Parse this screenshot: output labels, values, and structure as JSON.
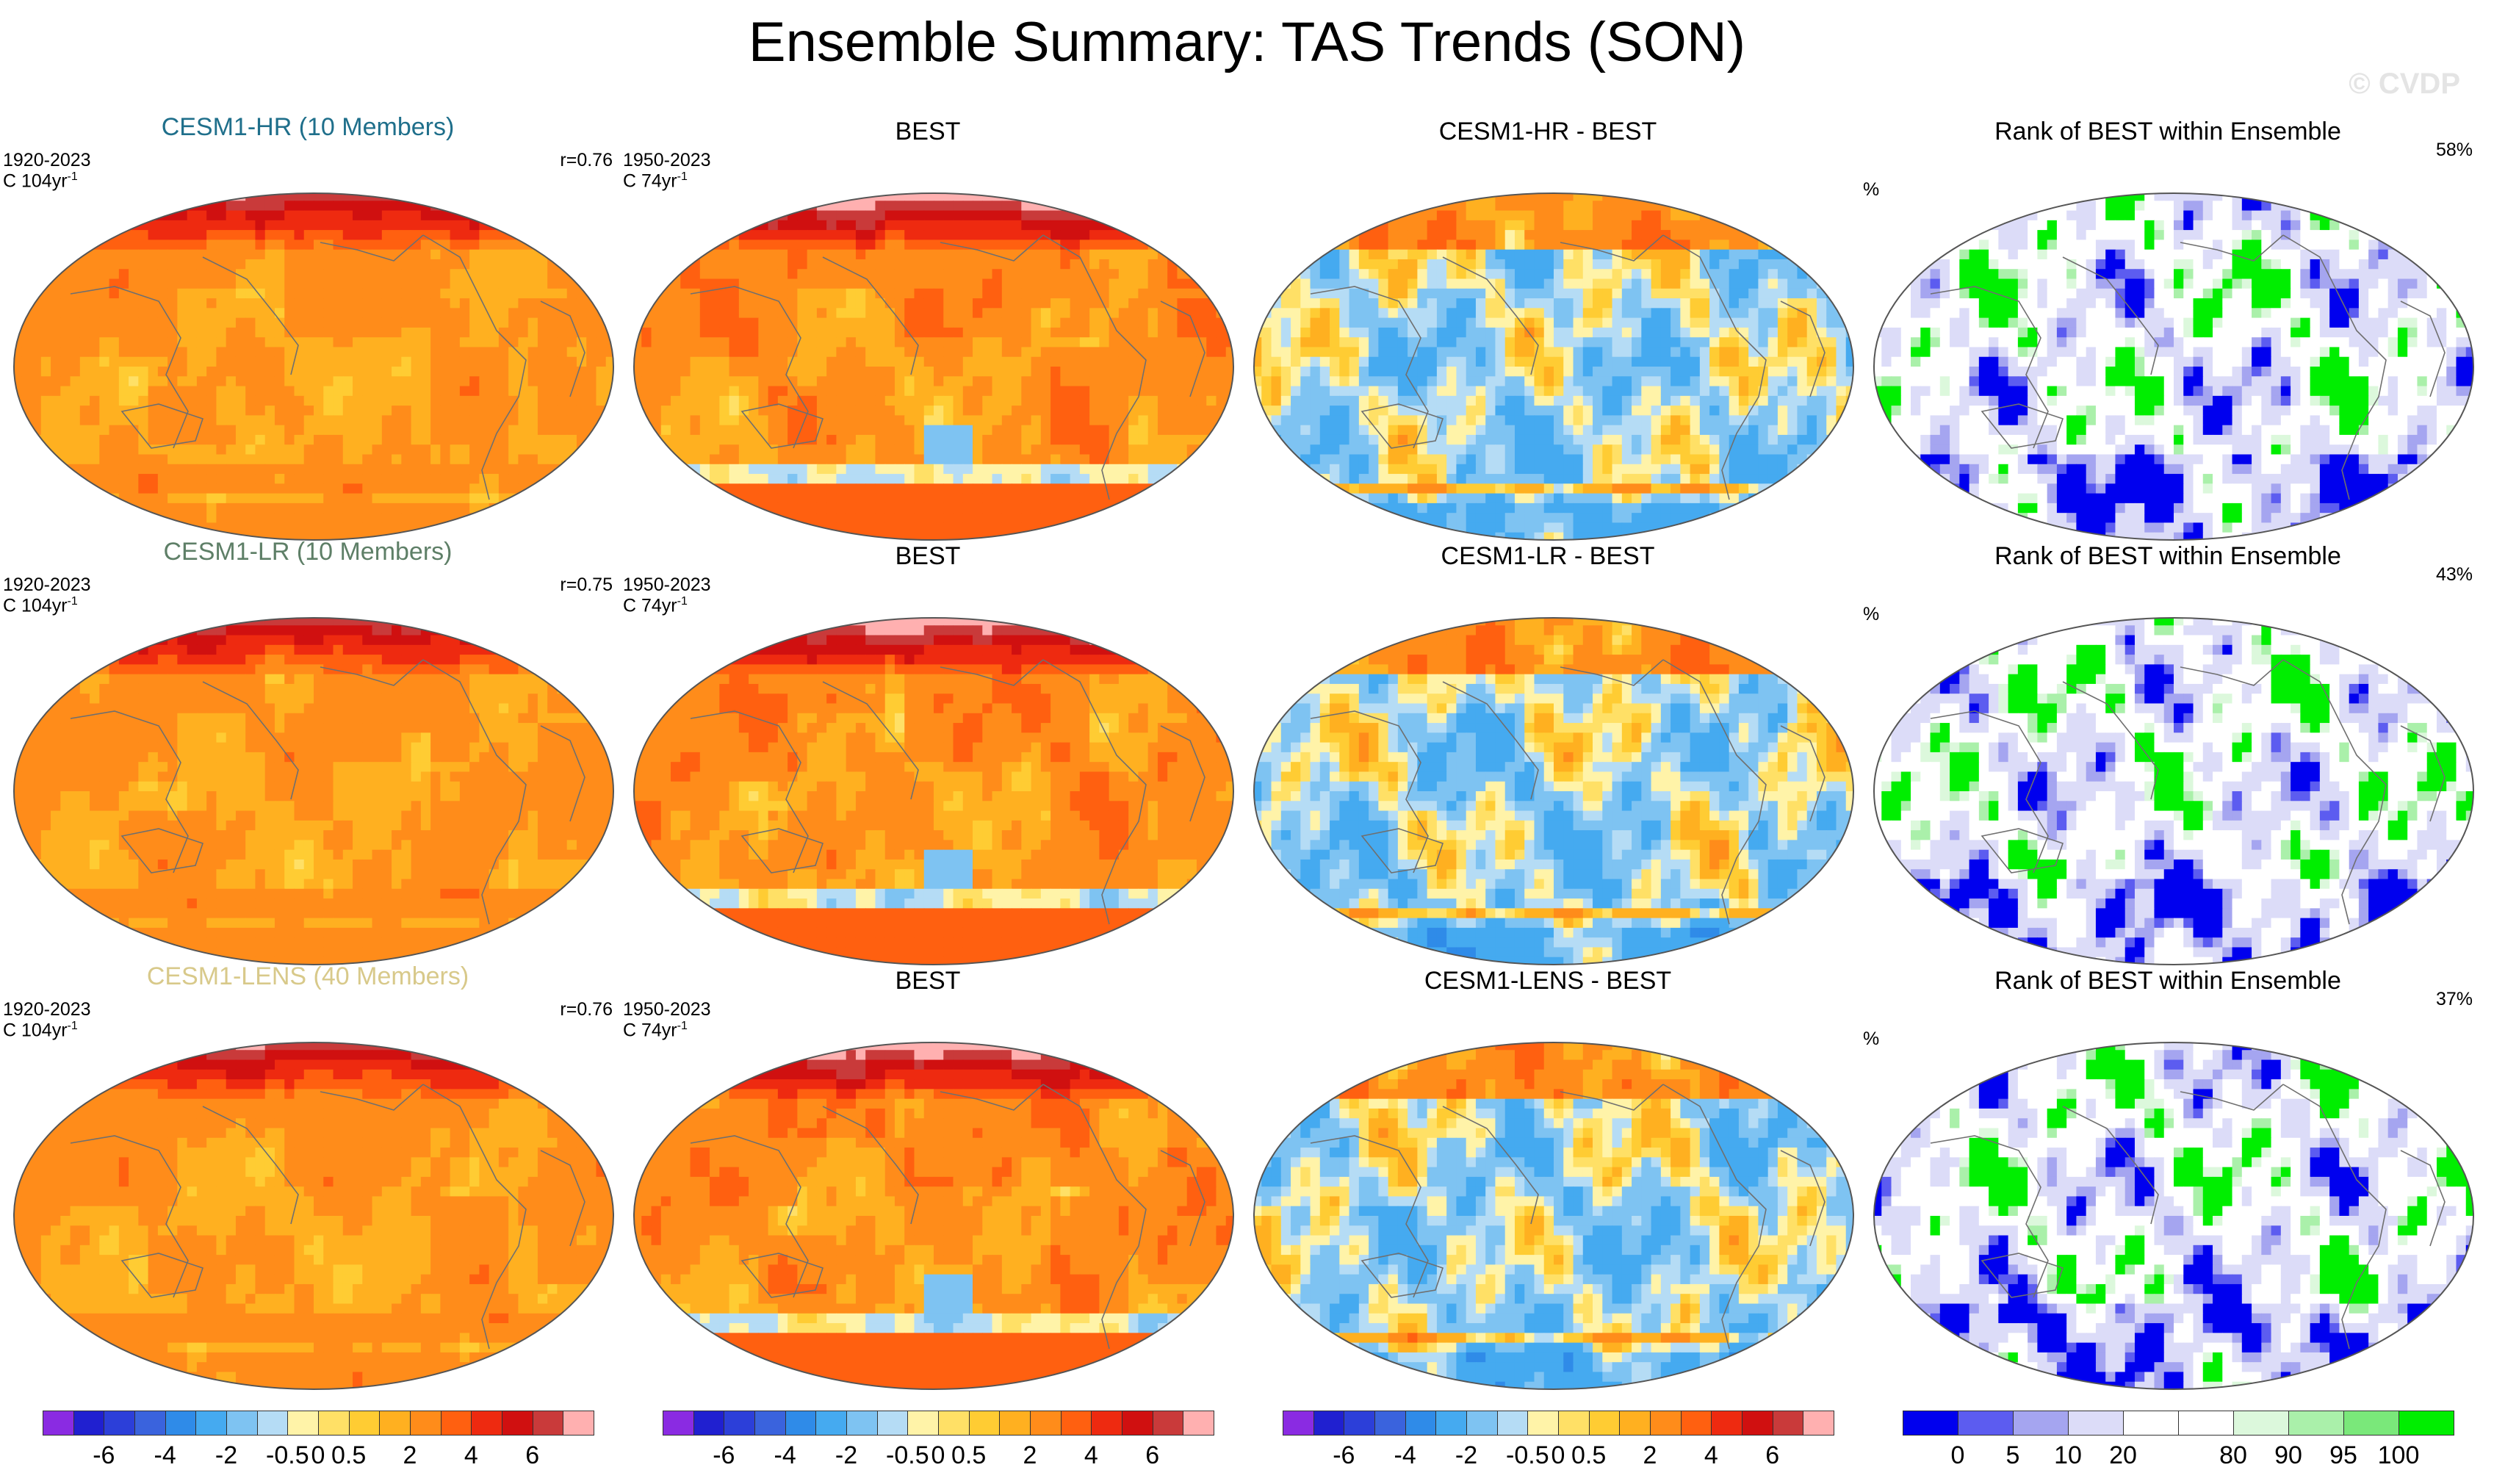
{
  "title": "Ensemble Summary: TAS Trends (SON)",
  "watermark": "© CVDP",
  "chart_data": {
    "type": "heatmap",
    "rows": [
      {
        "panels": [
          {
            "kind": "model",
            "title": "CESM1-HR (10 Members)",
            "title_color": "#1f6f8b",
            "tl1": "1920-2023",
            "tl2": "C 104yr",
            "tr": "r=0.76",
            "field": "model_warm"
          },
          {
            "kind": "obs",
            "title": "BEST",
            "tl1": "1950-2023",
            "tl2": "C 74yr",
            "tr": "",
            "field": "obs_warm"
          },
          {
            "kind": "diff",
            "title": "CESM1-HR - BEST",
            "tl1": "",
            "tl2": "",
            "tr": "",
            "field": "diff"
          },
          {
            "kind": "rank",
            "title": "Rank of BEST within Ensemble",
            "tl1": "%",
            "tl2": "",
            "tr": "58%",
            "field": "rank"
          }
        ]
      },
      {
        "panels": [
          {
            "kind": "model",
            "title": "CESM1-LR (10 Members)",
            "title_color": "#5e7f67",
            "tl1": "1920-2023",
            "tl2": "C 104yr",
            "tr": "r=0.75",
            "field": "model_warm"
          },
          {
            "kind": "obs",
            "title": "BEST",
            "tl1": "1950-2023",
            "tl2": "C 74yr",
            "tr": "",
            "field": "obs_warm"
          },
          {
            "kind": "diff",
            "title": "CESM1-LR - BEST",
            "tl1": "",
            "tl2": "",
            "tr": "",
            "field": "diff"
          },
          {
            "kind": "rank",
            "title": "Rank of BEST within Ensemble",
            "tl1": "%",
            "tl2": "",
            "tr": "43%",
            "field": "rank"
          }
        ]
      },
      {
        "panels": [
          {
            "kind": "model",
            "title": "CESM1-LENS (40 Members)",
            "title_color": "#d8c98a",
            "tl1": "1920-2023",
            "tl2": "C 104yr",
            "tr": "r=0.76",
            "field": "model_warm"
          },
          {
            "kind": "obs",
            "title": "BEST",
            "tl1": "1950-2023",
            "tl2": "C 74yr",
            "tr": "",
            "field": "obs_warm"
          },
          {
            "kind": "diff",
            "title": "CESM1-LENS - BEST",
            "tl1": "",
            "tl2": "",
            "tr": "",
            "field": "diff"
          },
          {
            "kind": "rank",
            "title": "Rank of BEST within Ensemble",
            "tl1": "%",
            "tl2": "",
            "tr": "37%",
            "field": "rank"
          }
        ]
      }
    ],
    "trend_colorbar": {
      "colors": [
        "#8a2be2",
        "#2020d0",
        "#2c3fd9",
        "#3a63dd",
        "#2f8be8",
        "#45aaf0",
        "#7ec3f2",
        "#b5dcf5",
        "#fff3a8",
        "#ffe066",
        "#ffcc33",
        "#ffb020",
        "#ff8c1a",
        "#ff6010",
        "#ee2a10",
        "#d01010",
        "#c93a3a",
        "#ffb0b0"
      ],
      "labels": [
        "-6",
        "-4",
        "-2",
        "-0.5",
        "0",
        "0.5",
        "2",
        "4",
        "6"
      ],
      "label_boundaries": [
        2,
        4,
        6,
        8,
        9,
        10,
        12,
        14,
        16
      ]
    },
    "rank_colorbar": {
      "colors": [
        "#0000ee",
        "#5c5cf0",
        "#a5a5f0",
        "#dcdcf8",
        "#ffffff",
        "#ffffff",
        "#dcf8dc",
        "#aaf0aa",
        "#7ae87a",
        "#00ee00"
      ],
      "labels": [
        "0",
        "5",
        "10",
        "20",
        "80",
        "90",
        "95",
        "100"
      ],
      "label_boundaries": [
        1,
        2,
        3,
        4,
        6,
        7,
        8,
        9
      ]
    }
  }
}
